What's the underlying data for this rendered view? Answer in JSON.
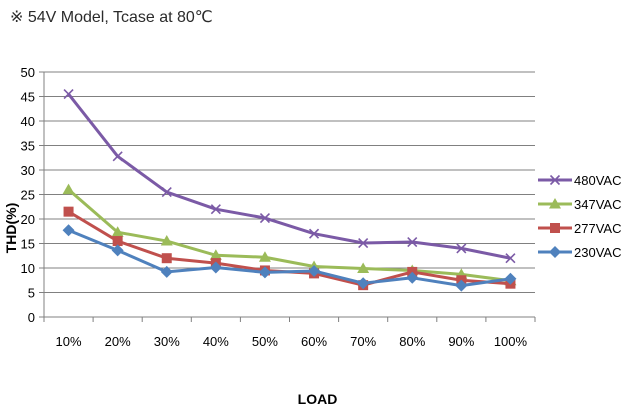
{
  "note": "※ 54V Model, Tcase at 80℃",
  "chart_data": {
    "type": "line",
    "title": "",
    "xlabel": "LOAD",
    "ylabel": "THD(%)",
    "categories": [
      "10%",
      "20%",
      "30%",
      "40%",
      "50%",
      "60%",
      "70%",
      "80%",
      "90%",
      "100%"
    ],
    "ylim": [
      0,
      50
    ],
    "yticks": [
      0,
      5,
      10,
      15,
      20,
      25,
      30,
      35,
      40,
      45,
      50
    ],
    "grid": true,
    "legend": "right",
    "series": [
      {
        "name": "480VAC",
        "color": "#7b5aa6",
        "marker": "x",
        "values": [
          45.5,
          32.8,
          25.5,
          22,
          20.2,
          17,
          15.1,
          15.3,
          14,
          12
        ]
      },
      {
        "name": "347VAC",
        "color": "#9bbb59",
        "marker": "triangle",
        "values": [
          26,
          17.3,
          15.5,
          12.6,
          12.2,
          10.3,
          9.9,
          9.5,
          8.7,
          7.4
        ]
      },
      {
        "name": "277VAC",
        "color": "#c0504d",
        "marker": "square",
        "values": [
          21.5,
          15.5,
          12,
          11,
          9.5,
          8.9,
          6.5,
          9.2,
          7.5,
          6.8
        ]
      },
      {
        "name": "230VAC",
        "color": "#4f81bd",
        "marker": "diamond",
        "values": [
          17.7,
          13.6,
          9.2,
          10.1,
          9.1,
          9.4,
          6.9,
          8,
          6.4,
          7.8
        ]
      }
    ]
  }
}
